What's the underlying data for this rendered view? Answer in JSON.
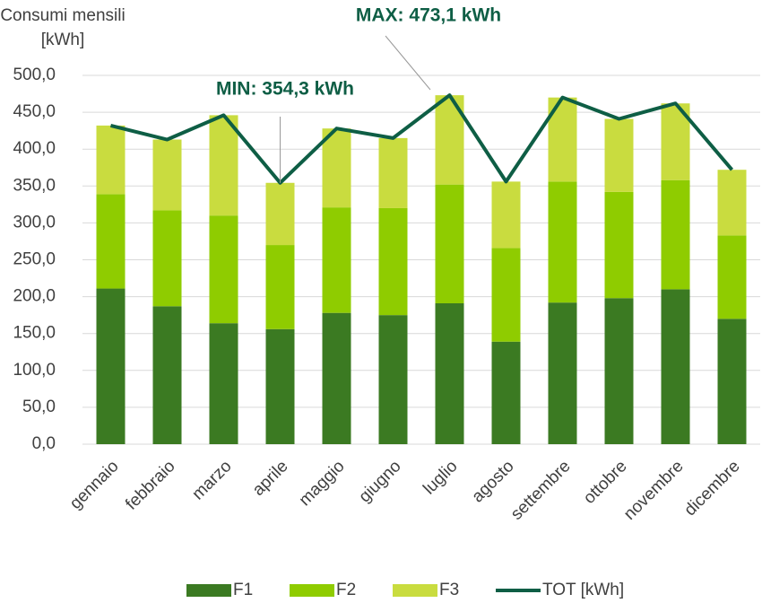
{
  "chart_data": {
    "type": "stacked-bar-line",
    "ylabel": [
      "Consumi mensili",
      "[kWh]"
    ],
    "categories": [
      "gennaio",
      "febbraio",
      "marzo",
      "aprile",
      "maggio",
      "giugno",
      "luglio",
      "agosto",
      "settembre",
      "ottobre",
      "novembre",
      "dicembre"
    ],
    "series": [
      {
        "name": "F1",
        "color": "#3b7a22",
        "values": [
          211,
          187,
          164,
          156,
          178,
          175,
          191,
          139,
          192,
          198,
          210,
          170
        ]
      },
      {
        "name": "F2",
        "color": "#8fcc00",
        "values": [
          128,
          130,
          146,
          114,
          143,
          145,
          161,
          127,
          164,
          144,
          148,
          113
        ]
      },
      {
        "name": "F3",
        "color": "#c9dc3f",
        "values": [
          93,
          96,
          136,
          84.3,
          107,
          95,
          121.1,
          90,
          114,
          99,
          104,
          89
        ]
      },
      {
        "name": "TOT [kWh]",
        "type": "line",
        "color": "#0e5e45",
        "values": [
          432,
          413,
          446,
          354.3,
          428,
          415,
          473.1,
          356,
          470,
          441,
          462,
          372
        ]
      }
    ],
    "annotations": [
      "MAX: 473,1 kWh",
      "MIN: 354,3 kWh"
    ],
    "ylim": [
      0,
      500
    ],
    "yticks": [
      {
        "value": 0,
        "label": "0,0"
      },
      {
        "value": 50,
        "label": "50,0"
      },
      {
        "value": 100,
        "label": "100,0"
      },
      {
        "value": 150,
        "label": "150,0"
      },
      {
        "value": 200,
        "label": "200,0"
      },
      {
        "value": 250,
        "label": "250,0"
      },
      {
        "value": 300,
        "label": "300,0"
      },
      {
        "value": 350,
        "label": "350,0"
      },
      {
        "value": 400,
        "label": "400,0"
      },
      {
        "value": 450,
        "label": "450,0"
      },
      {
        "value": 500,
        "label": "500,0"
      }
    ],
    "grid": true
  }
}
